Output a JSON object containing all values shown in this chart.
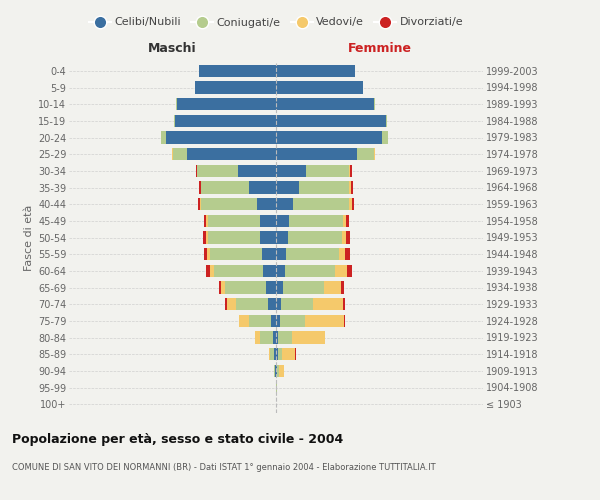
{
  "age_groups": [
    "100+",
    "95-99",
    "90-94",
    "85-89",
    "80-84",
    "75-79",
    "70-74",
    "65-69",
    "60-64",
    "55-59",
    "50-54",
    "45-49",
    "40-44",
    "35-39",
    "30-34",
    "25-29",
    "20-24",
    "15-19",
    "10-14",
    "5-9",
    "0-4"
  ],
  "birth_years": [
    "≤ 1903",
    "1904-1908",
    "1909-1913",
    "1914-1918",
    "1919-1923",
    "1924-1928",
    "1929-1933",
    "1934-1938",
    "1939-1943",
    "1944-1948",
    "1949-1953",
    "1954-1958",
    "1959-1963",
    "1964-1968",
    "1969-1973",
    "1974-1978",
    "1979-1983",
    "1984-1988",
    "1989-1993",
    "1994-1998",
    "1999-2003"
  ],
  "colors": {
    "celibe": "#3b6fa0",
    "coniugato": "#b5cc8e",
    "vedovo": "#f5c96b",
    "divorziato": "#cc2222"
  },
  "maschi": {
    "celibe": [
      0,
      1,
      4,
      8,
      15,
      22,
      38,
      50,
      65,
      70,
      75,
      75,
      90,
      130,
      185,
      430,
      530,
      490,
      480,
      390,
      370
    ],
    "coniugato": [
      0,
      1,
      5,
      20,
      60,
      110,
      155,
      195,
      235,
      250,
      255,
      255,
      270,
      230,
      195,
      70,
      25,
      5,
      2,
      0,
      0
    ],
    "vedovo": [
      0,
      0,
      1,
      4,
      25,
      45,
      45,
      20,
      18,
      12,
      10,
      8,
      5,
      3,
      2,
      2,
      1,
      0,
      0,
      0,
      0
    ],
    "divorziato": [
      0,
      0,
      0,
      1,
      2,
      4,
      8,
      10,
      18,
      18,
      15,
      12,
      10,
      8,
      5,
      2,
      1,
      0,
      0,
      0,
      0
    ]
  },
  "femmine": {
    "nubile": [
      0,
      2,
      5,
      8,
      10,
      18,
      25,
      35,
      45,
      50,
      60,
      65,
      80,
      110,
      145,
      390,
      510,
      530,
      475,
      420,
      380
    ],
    "coniugata": [
      0,
      1,
      8,
      20,
      65,
      120,
      155,
      195,
      240,
      255,
      260,
      260,
      275,
      245,
      210,
      85,
      30,
      8,
      3,
      0,
      0
    ],
    "vedova": [
      1,
      3,
      25,
      65,
      160,
      190,
      145,
      85,
      60,
      30,
      20,
      15,
      10,
      5,
      4,
      3,
      2,
      0,
      0,
      0,
      0
    ],
    "divorziata": [
      0,
      0,
      1,
      2,
      3,
      6,
      10,
      14,
      20,
      22,
      18,
      15,
      12,
      10,
      6,
      2,
      1,
      0,
      0,
      0,
      0
    ]
  },
  "xlim": 1000,
  "title": "Popolazione per età, sesso e stato civile - 2004",
  "subtitle": "COMUNE DI SAN VITO DEI NORMANNI (BR) - Dati ISTAT 1° gennaio 2004 - Elaborazione TUTTITALIA.IT",
  "ylabel_left": "Fasce di età",
  "xlabel_maschi": "Maschi",
  "xlabel_femmine": "Femmine",
  "legend_labels": [
    "Celibi/Nubili",
    "Coniugati/e",
    "Vedovi/e",
    "Divorziati/e"
  ],
  "background": "#f2f2ee",
  "bar_height": 0.75,
  "grid_color": "#cccccc",
  "tick_color": "#666666",
  "title_color": "#111111",
  "subtitle_color": "#555555",
  "maschi_label_color": "#333333",
  "femmine_label_color": "#cc2222"
}
